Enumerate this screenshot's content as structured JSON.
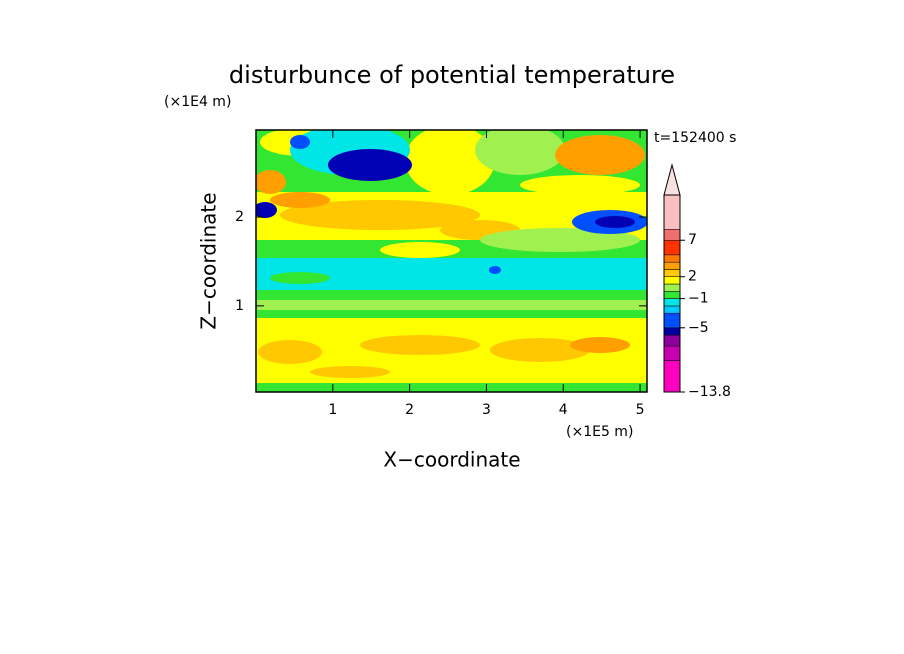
{
  "chart_data": {
    "type": "contour",
    "title": "disturbunce of potential temperature",
    "y_unit_label": "(×1E4 m)",
    "x_unit_label": "(×1E5 m)",
    "time_label": "t=152400 s",
    "xlabel": "X−coordinate",
    "ylabel": "Z−coordinate",
    "xlim": [
      0,
      5.09
    ],
    "xticks": [
      1,
      2,
      3,
      4,
      5
    ],
    "ylim": [
      0.03,
      2.98
    ],
    "yticks": [
      1,
      2
    ],
    "colorbar": {
      "clim": [
        -13.8,
        13.2
      ],
      "levels": [
        -13.8,
        -9.5,
        -7.5,
        -6,
        -5,
        -3,
        -2,
        -1,
        0,
        1,
        2,
        3,
        4,
        5,
        7,
        8.5,
        13.2
      ],
      "colors": [
        "#ff00c0",
        "#c800b4",
        "#8c00a0",
        "#0000a0",
        "#0050ff",
        "#00c8ff",
        "#00e6e6",
        "#32e632",
        "#a0f050",
        "#ffff00",
        "#ffc800",
        "#ffa000",
        "#ff7800",
        "#ff3200",
        "#f07070",
        "#f8c0c0"
      ],
      "ticks": [
        {
          "value": -13.8,
          "label": "−13.8"
        },
        {
          "value": -5,
          "label": "−5"
        },
        {
          "value": -1,
          "label": "−1"
        },
        2,
        7
      ]
    }
  }
}
